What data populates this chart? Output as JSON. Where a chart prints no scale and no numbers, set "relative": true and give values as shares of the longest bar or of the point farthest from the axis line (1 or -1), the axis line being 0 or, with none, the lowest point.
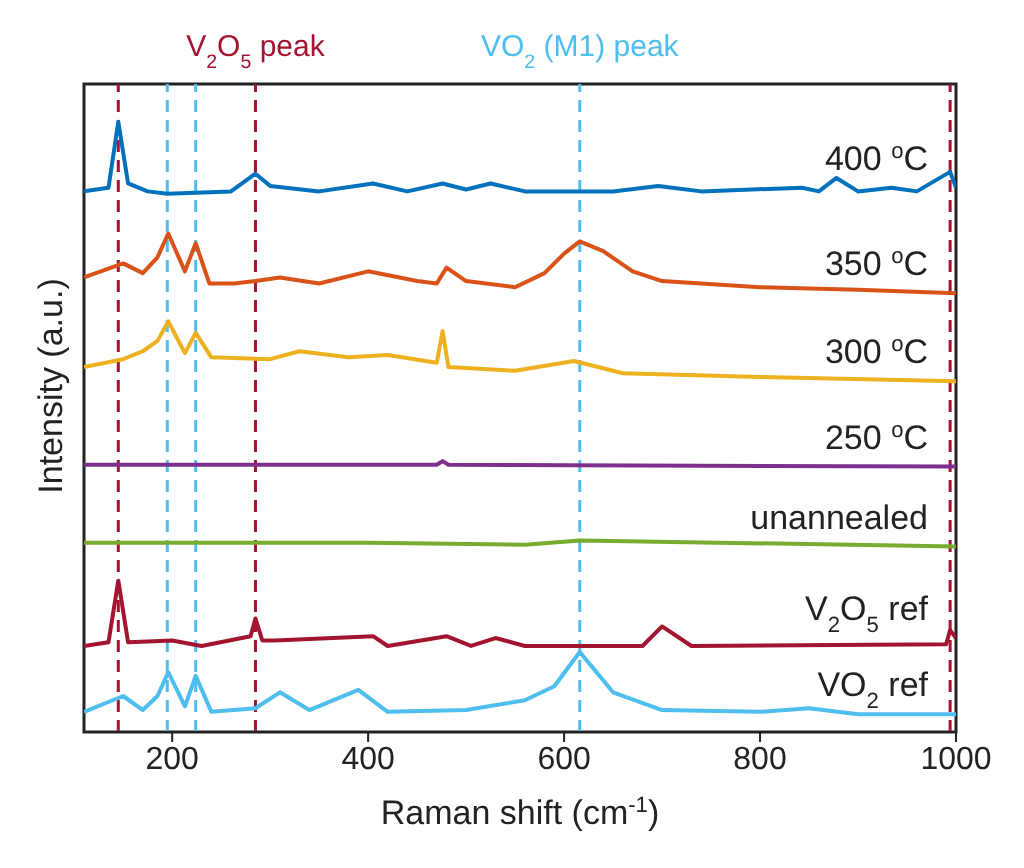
{
  "chart_data": {
    "type": "line",
    "relative": true,
    "xlabel": "Raman shift (cm$^{-1}$)",
    "ylabel": "Intensity (a.u.)",
    "xlim": [
      110,
      1000
    ],
    "xticks": [
      200,
      400,
      600,
      800,
      1000
    ],
    "marker": "none",
    "line_style": "solid",
    "series": [
      {
        "name": "400 $^{o}$C",
        "color": "#0072bd",
        "x": [
          110,
          135,
          145,
          155,
          175,
          195,
          260,
          285,
          300,
          350,
          405,
          440,
          476,
          500,
          525,
          560,
          650,
          696,
          740,
          843,
          860,
          878,
          900,
          934,
          960,
          994,
          1000
        ],
        "values": [
          0.886,
          0.892,
          1.0,
          0.899,
          0.886,
          0.882,
          0.886,
          0.915,
          0.895,
          0.886,
          0.899,
          0.886,
          0.899,
          0.889,
          0.899,
          0.886,
          0.886,
          0.895,
          0.886,
          0.892,
          0.886,
          0.908,
          0.886,
          0.892,
          0.886,
          0.918,
          0.892
        ]
      },
      {
        "name": "350 $^{o}$C",
        "color": "#d95319",
        "x": [
          110,
          150,
          170,
          185,
          196,
          213,
          224,
          238,
          263,
          285,
          310,
          350,
          400,
          450,
          470,
          480,
          500,
          550,
          580,
          600,
          616,
          640,
          670,
          700,
          800,
          900,
          1000
        ],
        "values": [
          0.745,
          0.768,
          0.752,
          0.778,
          0.817,
          0.755,
          0.801,
          0.735,
          0.735,
          0.739,
          0.745,
          0.735,
          0.755,
          0.739,
          0.735,
          0.761,
          0.739,
          0.729,
          0.752,
          0.784,
          0.804,
          0.788,
          0.755,
          0.739,
          0.729,
          0.725,
          0.719
        ]
      },
      {
        "name": "300 $^{o}$C",
        "color": "#edb120",
        "x": [
          110,
          150,
          170,
          185,
          196,
          213,
          224,
          240,
          300,
          330,
          380,
          420,
          470,
          476,
          482,
          550,
          610,
          660,
          800,
          1000
        ],
        "values": [
          0.598,
          0.611,
          0.624,
          0.641,
          0.673,
          0.621,
          0.654,
          0.614,
          0.611,
          0.624,
          0.614,
          0.618,
          0.605,
          0.657,
          0.598,
          0.592,
          0.608,
          0.588,
          0.582,
          0.575
        ]
      },
      {
        "name": "250 $^{o}$C",
        "color": "#7e2f8e",
        "x": [
          110,
          470,
          476,
          482,
          1000
        ],
        "values": [
          0.438,
          0.438,
          0.444,
          0.438,
          0.435
        ]
      },
      {
        "name": "unannealed",
        "color": "#77ac30",
        "x": [
          110,
          400,
          560,
          616,
          1000
        ],
        "values": [
          0.31,
          0.31,
          0.307,
          0.314,
          0.304
        ]
      },
      {
        "name": "V$_{2}$O$_{5}$ ref",
        "color": "#a2142f",
        "x": [
          110,
          135,
          145,
          155,
          200,
          230,
          280,
          285,
          292,
          305,
          405,
          420,
          480,
          505,
          530,
          560,
          680,
          700,
          730,
          990,
          994,
          1000
        ],
        "values": [
          0.141,
          0.147,
          0.248,
          0.147,
          0.15,
          0.141,
          0.157,
          0.186,
          0.15,
          0.15,
          0.157,
          0.141,
          0.157,
          0.141,
          0.154,
          0.141,
          0.141,
          0.173,
          0.141,
          0.144,
          0.167,
          0.154
        ]
      },
      {
        "name": "VO$_{2}$ ref",
        "color": "#4dbeee",
        "x": [
          110,
          150,
          170,
          185,
          196,
          213,
          224,
          240,
          285,
          310,
          340,
          390,
          420,
          500,
          560,
          590,
          616,
          650,
          700,
          800,
          850,
          900,
          1000
        ],
        "values": [
          0.033,
          0.059,
          0.036,
          0.059,
          0.098,
          0.042,
          0.092,
          0.033,
          0.039,
          0.065,
          0.036,
          0.069,
          0.033,
          0.036,
          0.052,
          0.075,
          0.131,
          0.065,
          0.036,
          0.033,
          0.039,
          0.029,
          0.029
        ]
      }
    ],
    "ref_lines": [
      {
        "axis": "x",
        "value": 145,
        "color": "#a2142f",
        "line_style": "dashed"
      },
      {
        "axis": "x",
        "value": 285,
        "color": "#a2142f",
        "line_style": "dashed",
        "label": "V$_{2}$O$_{5}$ peak"
      },
      {
        "axis": "x",
        "value": 994,
        "color": "#a2142f",
        "line_style": "dashed"
      },
      {
        "axis": "x",
        "value": 195,
        "color": "#4dbeee",
        "line_style": "dashed"
      },
      {
        "axis": "x",
        "value": 224,
        "color": "#4dbeee",
        "line_style": "dashed"
      },
      {
        "axis": "x",
        "value": 616,
        "color": "#4dbeee",
        "line_style": "dashed",
        "label": "VO$_{2}$ (M1) peak"
      }
    ]
  }
}
